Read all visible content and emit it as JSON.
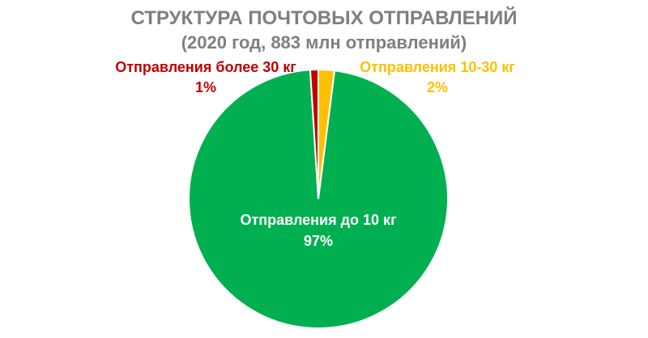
{
  "chart_data": {
    "type": "pie",
    "title": "СТРУКТУРА ПОЧТОВЫХ ОТПРАВЛЕНИЙ",
    "subtitle": "(2020 год, 883 млн отправлений)",
    "slices": [
      {
        "label": "Отправления до 10 кг",
        "value": 97,
        "value_label": "97%",
        "color": "#00b050",
        "label_color": "#ffffff"
      },
      {
        "label": "Отправления более 30 кг",
        "value": 1,
        "value_label": "1%",
        "color": "#c00000",
        "label_color": "#c00000"
      },
      {
        "label": "Отправления 10-30 кг",
        "value": 2,
        "value_label": "2%",
        "color": "#ffc000",
        "label_color": "#ffc000"
      }
    ]
  }
}
